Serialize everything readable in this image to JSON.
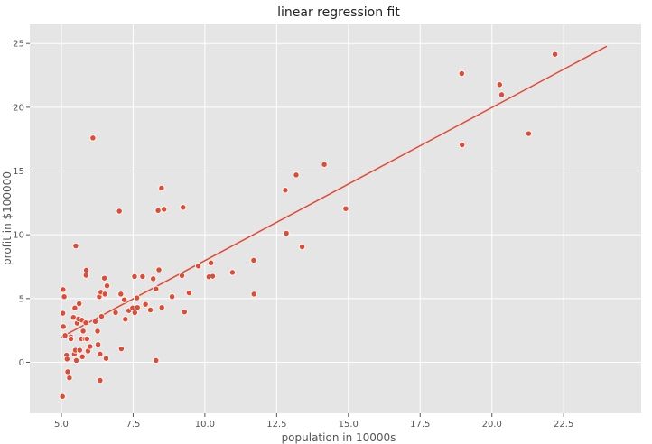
{
  "chart_data": {
    "type": "scatter",
    "title": "linear regression fit",
    "xlabel": "population in 10000s",
    "ylabel": "profit in $100000",
    "xlim": [
      3.9,
      25.2
    ],
    "ylim": [
      -4.0,
      26.5
    ],
    "xticks": [
      5.0,
      7.5,
      10.0,
      12.5,
      15.0,
      17.5,
      20.0,
      22.5
    ],
    "xtick_labels": [
      "5.0",
      "7.5",
      "10.0",
      "12.5",
      "15.0",
      "17.5",
      "20.0",
      "22.5"
    ],
    "yticks": [
      0,
      5,
      10,
      15,
      20,
      25
    ],
    "ytick_labels": [
      "0",
      "5",
      "10",
      "15",
      "20",
      "25"
    ],
    "grid": true,
    "colors": {
      "background": "#e5e5e5",
      "grid": "#ffffff",
      "marker": "#e24a33",
      "marker_edge": "#ffffff",
      "line": "#e24a33"
    },
    "series": [
      {
        "kind": "points",
        "points": [
          [
            5.04,
            -2.68
          ],
          [
            5.05,
            3.85
          ],
          [
            5.06,
            5.7
          ],
          [
            5.07,
            2.8
          ],
          [
            5.1,
            5.15
          ],
          [
            5.13,
            2.1
          ],
          [
            5.18,
            0.56
          ],
          [
            5.2,
            0.25
          ],
          [
            5.22,
            -0.74
          ],
          [
            5.28,
            -1.22
          ],
          [
            5.33,
            2.0
          ],
          [
            5.33,
            1.84
          ],
          [
            5.42,
            3.52
          ],
          [
            5.45,
            0.65
          ],
          [
            5.47,
            4.26
          ],
          [
            5.49,
            0.95
          ],
          [
            5.5,
            9.13
          ],
          [
            5.52,
            0.15
          ],
          [
            5.55,
            3.07
          ],
          [
            5.6,
            3.4
          ],
          [
            5.62,
            4.6
          ],
          [
            5.64,
            0.95
          ],
          [
            5.7,
            1.84
          ],
          [
            5.72,
            3.3
          ],
          [
            5.73,
            0.44
          ],
          [
            5.76,
            2.45
          ],
          [
            5.83,
            1.84
          ],
          [
            5.85,
            3.1
          ],
          [
            5.86,
            6.82
          ],
          [
            5.87,
            7.22
          ],
          [
            5.89,
            1.84
          ],
          [
            5.93,
            0.88
          ],
          [
            6.0,
            1.24
          ],
          [
            6.1,
            17.59
          ],
          [
            6.18,
            3.2
          ],
          [
            6.26,
            2.44
          ],
          [
            6.28,
            1.4
          ],
          [
            6.32,
            5.15
          ],
          [
            6.35,
            -1.42
          ],
          [
            6.35,
            0.64
          ],
          [
            6.38,
            5.5
          ],
          [
            6.4,
            3.6
          ],
          [
            6.5,
            6.6
          ],
          [
            6.52,
            5.35
          ],
          [
            6.56,
            0.3
          ],
          [
            6.59,
            6.0
          ],
          [
            6.89,
            3.9
          ],
          [
            7.02,
            11.85
          ],
          [
            7.07,
            5.35
          ],
          [
            7.09,
            1.05
          ],
          [
            7.19,
            4.9
          ],
          [
            7.23,
            3.38
          ],
          [
            7.35,
            4.05
          ],
          [
            7.48,
            4.26
          ],
          [
            7.55,
            6.73
          ],
          [
            7.56,
            3.9
          ],
          [
            7.63,
            5.05
          ],
          [
            7.65,
            4.3
          ],
          [
            7.83,
            6.73
          ],
          [
            7.93,
            4.55
          ],
          [
            8.1,
            4.1
          ],
          [
            8.2,
            6.55
          ],
          [
            8.3,
            0.15
          ],
          [
            8.3,
            5.75
          ],
          [
            8.37,
            11.9
          ],
          [
            8.4,
            7.25
          ],
          [
            8.49,
            13.66
          ],
          [
            8.5,
            4.3
          ],
          [
            8.58,
            12.0
          ],
          [
            8.86,
            5.15
          ],
          [
            9.2,
            6.8
          ],
          [
            9.24,
            12.15
          ],
          [
            9.29,
            3.95
          ],
          [
            9.45,
            5.45
          ],
          [
            9.77,
            7.55
          ],
          [
            10.14,
            6.7
          ],
          [
            10.21,
            7.8
          ],
          [
            10.27,
            6.75
          ],
          [
            10.96,
            7.05
          ],
          [
            11.7,
            8.0
          ],
          [
            11.71,
            5.35
          ],
          [
            12.8,
            13.5
          ],
          [
            12.84,
            10.12
          ],
          [
            13.18,
            14.69
          ],
          [
            13.39,
            9.05
          ],
          [
            14.16,
            15.51
          ],
          [
            14.91,
            12.05
          ],
          [
            18.95,
            22.64
          ],
          [
            18.96,
            17.05
          ],
          [
            20.27,
            21.77
          ],
          [
            20.34,
            20.99
          ],
          [
            21.28,
            17.93
          ],
          [
            22.2,
            24.15
          ]
        ]
      },
      {
        "kind": "line",
        "points": [
          [
            5.0,
            1.98
          ],
          [
            24.0,
            24.78
          ]
        ]
      }
    ]
  }
}
